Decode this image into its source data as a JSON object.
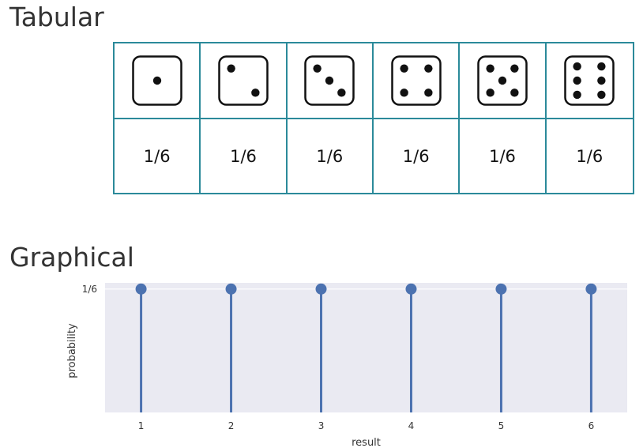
{
  "sections": {
    "tabular_title": "Tabular",
    "graphical_title": "Graphical"
  },
  "table": {
    "faces": [
      1,
      2,
      3,
      4,
      5,
      6
    ],
    "probabilities": [
      "1/6",
      "1/6",
      "1/6",
      "1/6",
      "1/6",
      "1/6"
    ]
  },
  "colors": {
    "table_border": "#2b8a9a",
    "stem": "#4c72b0",
    "plot_background": "#eaeaf2"
  },
  "chart_data": {
    "type": "stem",
    "x": [
      1,
      2,
      3,
      4,
      5,
      6
    ],
    "y": [
      0.16667,
      0.16667,
      0.16667,
      0.16667,
      0.16667,
      0.16667
    ],
    "x_tick_labels": [
      "1",
      "2",
      "3",
      "4",
      "5",
      "6"
    ],
    "y_tick_labels": [
      "1/6"
    ],
    "y_tick_values": [
      0.16667
    ],
    "xlabel": "result",
    "ylabel": "probability",
    "xlim": [
      0.6,
      6.4
    ],
    "ylim": [
      0,
      0.175
    ],
    "grid": true
  }
}
